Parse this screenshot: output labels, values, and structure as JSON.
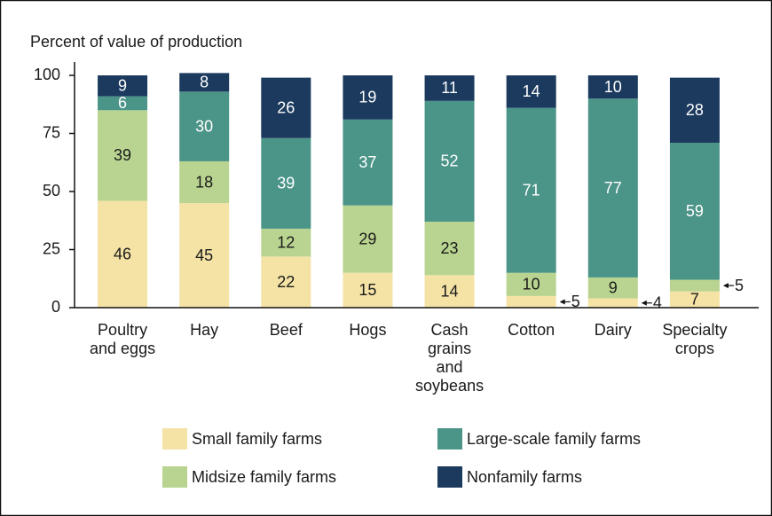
{
  "chart_data": {
    "type": "stacked_bar",
    "y_axis_label": "Percent of value of production",
    "categories": [
      "Poultry and eggs",
      "Hay",
      "Beef",
      "Hogs",
      "Cash grains and soybeans",
      "Cotton",
      "Dairy",
      "Specialty crops"
    ],
    "series": [
      {
        "name": "Small family farms",
        "color": "#f5e3a6",
        "values": [
          46,
          45,
          22,
          15,
          14,
          5,
          4,
          7
        ]
      },
      {
        "name": "Midsize family farms",
        "color": "#b9d490",
        "values": [
          39,
          18,
          12,
          29,
          23,
          10,
          9,
          5
        ]
      },
      {
        "name": "Large-scale family farms",
        "color": "#4b9488",
        "values": [
          6,
          30,
          39,
          37,
          52,
          71,
          77,
          59
        ]
      },
      {
        "name": "Nonfamily farms",
        "color": "#1b3a5e",
        "values": [
          9,
          8,
          26,
          19,
          11,
          14,
          10,
          28
        ]
      }
    ],
    "ylim": [
      0,
      100
    ],
    "yticks": [
      0,
      25,
      50,
      75,
      100
    ]
  }
}
